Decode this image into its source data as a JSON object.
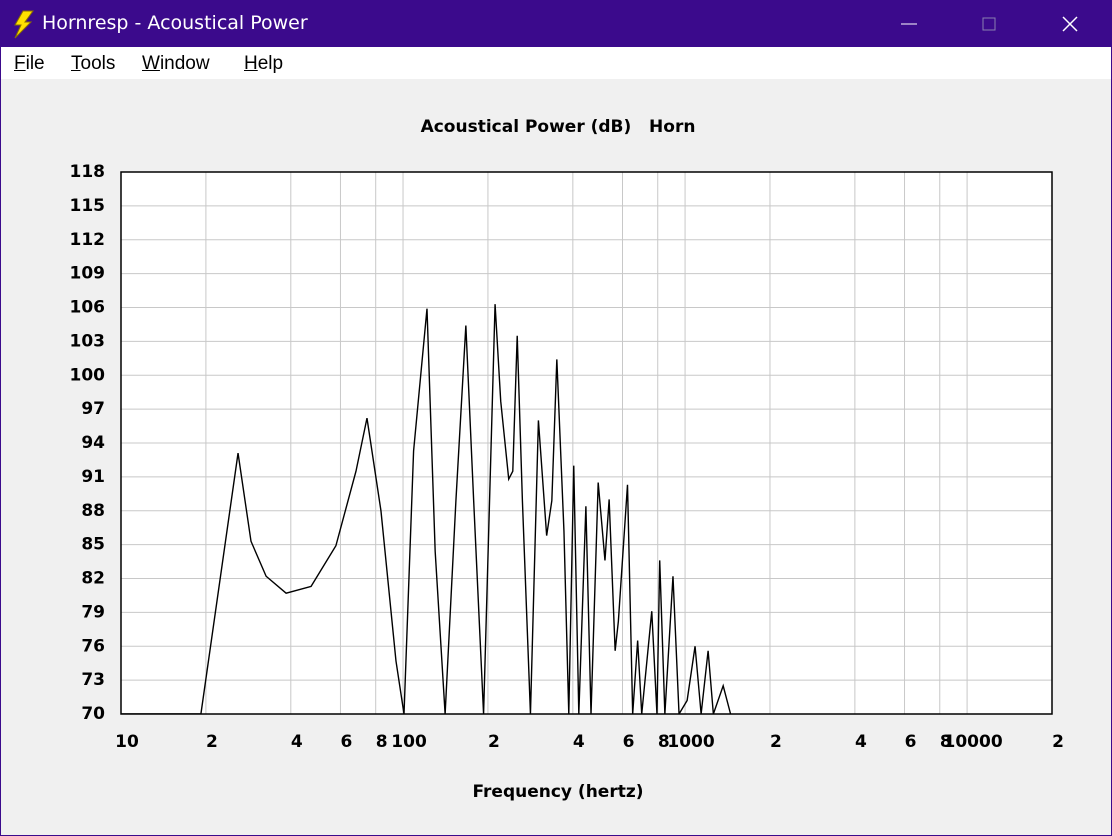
{
  "window": {
    "title": "Hornresp - Acoustical Power"
  },
  "menu": [
    "File",
    "Tools",
    "Window",
    "Help"
  ],
  "chart_data": {
    "type": "line",
    "title": "Acoustical Power (dB)   Horn",
    "xlabel": "Frequency (hertz)",
    "x": [
      10,
      19.2,
      26,
      28.9,
      32.7,
      38.5,
      47.2,
      57.8,
      68.1,
      74.5,
      83.5,
      94.4,
      100.8,
      109,
      121.6,
      130,
      141,
      154,
      167,
      178,
      193,
      212,
      222,
      237,
      245,
      254,
      265,
      283,
      302,
      323,
      337,
      351,
      372,
      387,
      403,
      420,
      445,
      464,
      492,
      520,
      538,
      565,
      580,
      625,
      652,
      679,
      702,
      762,
      795,
      813,
      848,
      906,
      952,
      1017,
      1085,
      1140,
      1207,
      1260,
      1365,
      1450
    ],
    "values": [
      70,
      70,
      93.1,
      85.3,
      82.2,
      80.7,
      81.3,
      84.9,
      91.5,
      96.2,
      88,
      74.7,
      70,
      93.3,
      105.9,
      84.4,
      70,
      88.9,
      104.4,
      88.9,
      70,
      106.3,
      97.7,
      90.8,
      91.5,
      103.5,
      88.9,
      70,
      96,
      85.8,
      88.9,
      101.4,
      86.2,
      70,
      92,
      70,
      88.4,
      70,
      90.5,
      83.6,
      89,
      75.6,
      78.2,
      90.3,
      70,
      76.5,
      70,
      79.1,
      70,
      83.6,
      70,
      82.2,
      70,
      71.2,
      76,
      70,
      75.6,
      70,
      72.5,
      70
    ],
    "color": "#000000",
    "xlim": [
      10,
      20000
    ],
    "ylim": [
      70,
      118
    ],
    "log_x": true,
    "grid": true,
    "xticks": [
      10,
      {
        "value": 20,
        "label": "2"
      },
      {
        "value": 40,
        "label": "4"
      },
      {
        "value": 60,
        "label": "6"
      },
      {
        "value": 80,
        "label": "8"
      },
      100,
      {
        "value": 200,
        "label": "2"
      },
      {
        "value": 400,
        "label": "4"
      },
      {
        "value": 600,
        "label": "6"
      },
      {
        "value": 800,
        "label": "8"
      },
      1000,
      {
        "value": 2000,
        "label": "2"
      },
      {
        "value": 4000,
        "label": "4"
      },
      {
        "value": 6000,
        "label": "6"
      },
      {
        "value": 8000,
        "label": "8"
      },
      10000,
      {
        "value": 20000,
        "label": "2"
      }
    ],
    "yticks": [
      70,
      73,
      76,
      79,
      82,
      85,
      88,
      91,
      94,
      97,
      100,
      103,
      106,
      109,
      112,
      115,
      118
    ]
  }
}
